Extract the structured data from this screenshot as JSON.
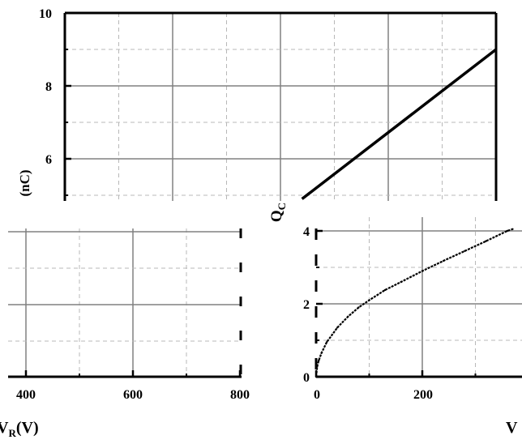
{
  "chart_data": [
    {
      "panel": "back-top",
      "type": "line",
      "ylabel": "(nC)",
      "yticks": [
        "10",
        "8",
        "6"
      ],
      "ylim": [
        4.4,
        10
      ],
      "grid": "solid major, dashed minor",
      "series": [
        {
          "x": [
            0.55,
            1.0
          ],
          "y": [
            4.9,
            9.0
          ]
        }
      ],
      "line_color": "#000000"
    },
    {
      "panel": "bottom-left",
      "type": "line",
      "xlabel_fragment": "V",
      "xlabel_subscript": "R",
      "xlabel_suffix": "(V)",
      "xticks": [
        "400",
        "600",
        "800"
      ],
      "xlim": [
        360,
        800
      ],
      "grid": "solid major, dashed minor",
      "series": []
    },
    {
      "panel": "bottom-right",
      "type": "line",
      "ylabel": "Q",
      "ylabel_subscript": "C",
      "yticks": [
        "0",
        "2",
        "4"
      ],
      "xticks": [
        "0",
        "200"
      ],
      "xlabel_fragment": "V",
      "xlim": [
        0,
        370
      ],
      "ylim": [
        0,
        4.6
      ],
      "grid": "solid major, dashed minor",
      "series": [
        {
          "x": [
            0,
            2,
            5,
            10,
            20,
            40,
            60,
            80,
            100,
            130,
            160,
            200,
            240,
            280,
            320,
            360,
            370
          ],
          "y": [
            0,
            0.28,
            0.45,
            0.65,
            0.95,
            1.35,
            1.65,
            1.9,
            2.1,
            2.38,
            2.6,
            2.9,
            3.18,
            3.45,
            3.72,
            4.0,
            4.05
          ]
        }
      ],
      "line_color": "#000000"
    }
  ]
}
